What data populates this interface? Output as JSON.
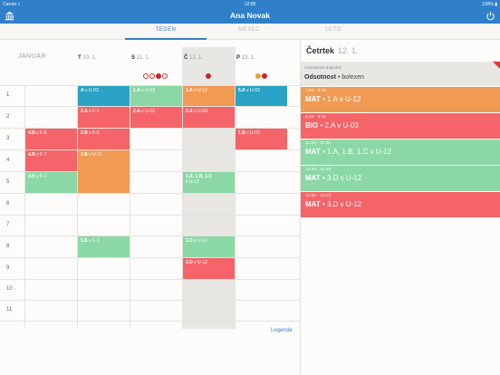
{
  "status": {
    "carrier": "Carrier ☇",
    "time": "12:00",
    "battery": "100% ▮"
  },
  "header": {
    "title": "Ana Novak"
  },
  "tabs": [
    "TEDEN",
    "MESEC",
    "LETO"
  ],
  "calendar": {
    "month": "JANUAR",
    "days": [
      {
        "abbr": "T",
        "date": "10. 1."
      },
      {
        "abbr": "S",
        "date": "11. 1."
      },
      {
        "abbr": "Č",
        "date": "12. 1."
      },
      {
        "abbr": "P",
        "date": "13. 1."
      }
    ],
    "periods": [
      "1",
      "2",
      "3",
      "4",
      "5",
      "6",
      "7",
      "8",
      "9",
      "10",
      "11"
    ],
    "cells": [
      {
        "cls": "A",
        "room": "v U-03"
      },
      {
        "cls": "1.A",
        "room": "v U-03"
      },
      {
        "cls": "1.A",
        "room": "v U-12"
      },
      {
        "cls": "5.A",
        "room": "v U-03"
      },
      {
        "cls": "2.A",
        "room": "v F-1"
      },
      {
        "cls": "2.A",
        "room": "v U-03"
      },
      {
        "cls": "2.A",
        "room": "v U-03"
      },
      {
        "cls": "4.B",
        "room": "v F-5"
      },
      {
        "cls": "2.B",
        "room": "v F-5"
      },
      {
        "cls": "1.B",
        "room": "v U-03"
      },
      {
        "cls": "4.B",
        "room": "v F-7"
      },
      {
        "cls": "1.B",
        "room": "v U-11"
      },
      {
        "cls": "4.B",
        "room": "v F-1"
      },
      {
        "cls": "1.A, 1.B, 1.C",
        "room": "v U-12"
      },
      {
        "cls": "5.B",
        "room": "v F-1"
      },
      {
        "cls": "3.D",
        "room": "v U-12"
      },
      {
        "cls": "3.D",
        "room": "v U-12"
      }
    ],
    "legend": "Legenda"
  },
  "panel": {
    "day_name": "Četrtek",
    "day_date": "12. 1.",
    "absence_label": "Celodnevni dogodek",
    "absence_title": "Odsotnost",
    "absence_reason": "• bolezen",
    "items": [
      {
        "time": "7:55 - 8:40",
        "subject": "MAT",
        "detail": "• 1.A v U-12"
      },
      {
        "time": "8:40 - 9:30",
        "subject": "BIO",
        "detail": "• 2.A v U-03"
      },
      {
        "time": "11:20 - 12:10",
        "subject": "MAT",
        "detail": "• 1.A, 1.B, 1.C v U-12"
      },
      {
        "time": "13:55 - 14:50",
        "subject": "MAT",
        "detail": "• 3.D v U-12"
      },
      {
        "time": "14:50 - 15:40",
        "subject": "MAT",
        "detail": "• 3.D v U-12"
      }
    ]
  },
  "colors": {
    "brand": "#2f7fc9",
    "blue": "#2aa3c6",
    "green": "#8bd8a6",
    "red": "#f46468",
    "orange": "#f09a53"
  }
}
